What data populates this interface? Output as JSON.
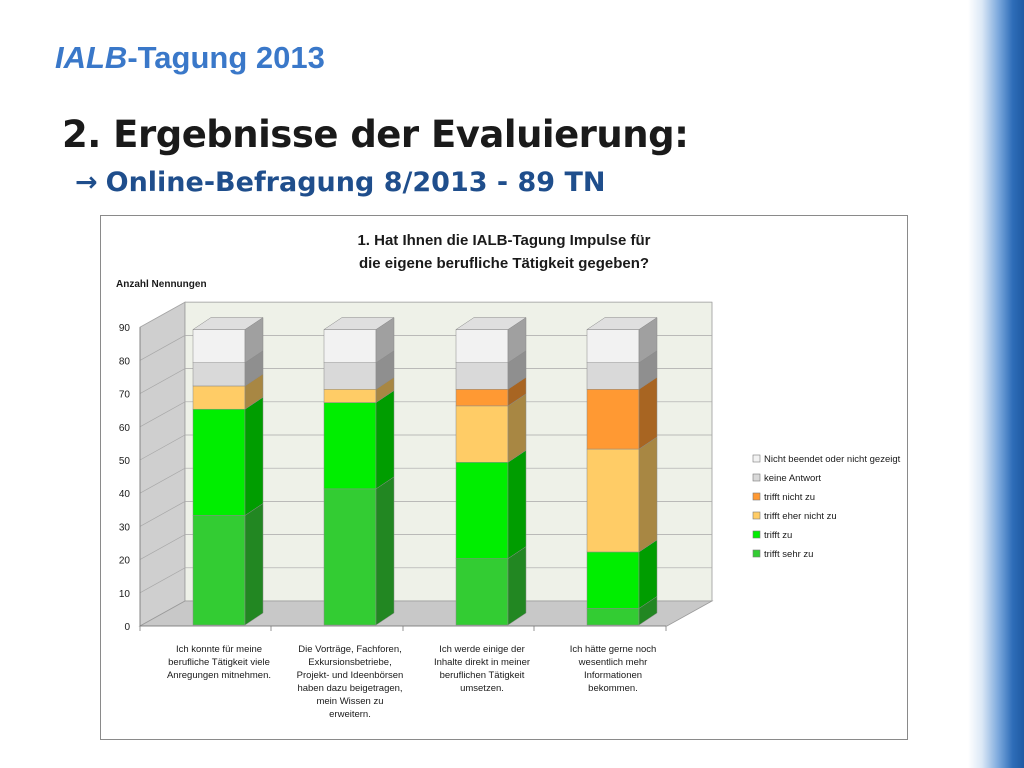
{
  "slide": {
    "header_italic": "IALB",
    "header_rest": "-Tagung 2013",
    "heading": "2. Ergebnisse der Evaluierung:",
    "subheading_arrow": "→",
    "subheading": "Online-Befragung 8/2013  - 89 TN"
  },
  "chart_data": {
    "type": "bar",
    "stacked": true,
    "three_d": true,
    "title_lines": [
      "1. Hat Ihnen die IALB-Tagung Impulse für",
      "die eigene berufliche Tätigkeit gegeben?"
    ],
    "ylabel": "Anzahl Nennungen",
    "ylim": [
      0,
      90
    ],
    "yticks": [
      0,
      10,
      20,
      30,
      40,
      50,
      60,
      70,
      80,
      90
    ],
    "legend_position": "right",
    "categories": [
      [
        "Ich konnte für meine",
        "berufliche Tätigkeit viele",
        "Anregungen mitnehmen."
      ],
      [
        "Die Vorträge, Fachforen,",
        "Exkursionsbetriebe,",
        "Projekt- und Ideenbörsen",
        "haben dazu beigetragen,",
        "mein Wissen zu",
        "erweitern."
      ],
      [
        "Ich werde einige der",
        "Inhalte direkt in meiner",
        "beruflichen Tätigkeit",
        "umsetzen."
      ],
      [
        "Ich hätte gerne noch",
        "wesentlich mehr",
        "Informationen",
        "bekommen."
      ]
    ],
    "series": [
      {
        "name": "trifft sehr zu",
        "color": "#33cc33",
        "values": [
          33,
          41,
          20,
          5
        ]
      },
      {
        "name": "trifft zu",
        "color": "#00ee00",
        "values": [
          32,
          26,
          29,
          17
        ]
      },
      {
        "name": "trifft eher nicht zu",
        "color": "#ffcc66",
        "values": [
          7,
          4,
          17,
          31
        ]
      },
      {
        "name": "trifft nicht zu",
        "color": "#ff9933",
        "values": [
          0,
          0,
          5,
          18
        ]
      },
      {
        "name": "keine Antwort",
        "color": "#d9d9d9",
        "values": [
          7,
          8,
          8,
          8
        ]
      },
      {
        "name": "Nicht beendet oder nicht gezeigt",
        "color": "#f2f2f2",
        "values": [
          10,
          10,
          10,
          10
        ]
      }
    ]
  }
}
